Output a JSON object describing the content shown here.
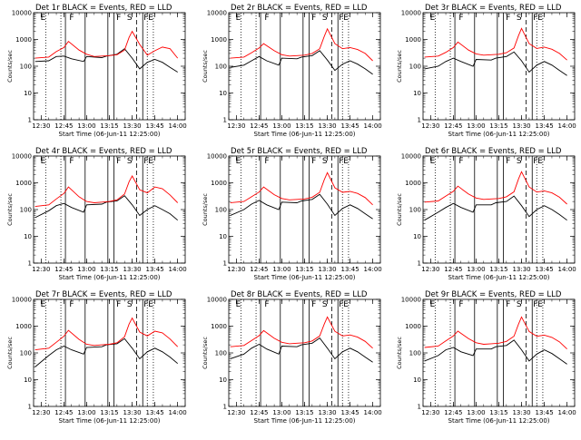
{
  "chart_data": {
    "type": "line",
    "shared": {
      "xlabel": "Start Time (06-Jun-11 12:25:00)",
      "ylabel": "Counts/sec",
      "x_ticks": [
        "12:30",
        "12:45",
        "13:00",
        "13:15",
        "13:30",
        "13:45",
        "14:00"
      ],
      "x_range": [
        "12:25",
        "14:05"
      ],
      "y_ticks": [
        "1",
        "10",
        "100",
        "1000",
        "10000"
      ],
      "y_log": true,
      "y_range": [
        1,
        10000
      ],
      "series_colors": {
        "events": "#000000",
        "lld": "#ff0000"
      },
      "markers": {
        "dotted": [
          "12:33",
          "12:43",
          "13:40",
          "13:44"
        ],
        "solid": [
          "12:46",
          "12:59",
          "13:14",
          "13:18",
          "13:37"
        ],
        "dashed": [
          "13:33"
        ]
      },
      "marker_labels": [
        {
          "time": "12:29",
          "text": "E"
        },
        {
          "time": "12:48",
          "text": "F"
        },
        {
          "time": "13:19",
          "text": "F"
        },
        {
          "time": "13:26",
          "text": "S"
        },
        {
          "time": "13:37",
          "text": "F"
        },
        {
          "time": "13:40",
          "text": "E"
        }
      ]
    },
    "panels": [
      {
        "title": "Det 1r BLACK = Events, RED = LLD",
        "series": [
          {
            "name": "BLACK = Events",
            "x": [
              "12:26",
              "12:35",
              "12:40",
              "12:45",
              "12:50",
              "12:58",
              "13:00",
              "13:10",
              "13:13",
              "13:20",
              "13:25",
              "13:30",
              "13:35",
              "13:40",
              "13:45",
              "13:50",
              "13:55",
              "14:00"
            ],
            "values": [
              150,
              160,
              230,
              240,
              190,
              150,
              230,
              210,
              240,
              280,
              450,
              200,
              80,
              140,
              180,
              140,
              90,
              60
            ]
          },
          {
            "name": "RED = LLD",
            "x": [
              "12:26",
              "12:35",
              "12:40",
              "12:45",
              "12:48",
              "12:55",
              "13:00",
              "13:05",
              "13:10",
              "13:15",
              "13:20",
              "13:25",
              "13:28",
              "13:30",
              "13:35",
              "13:40",
              "13:45",
              "13:50",
              "13:55",
              "14:00"
            ],
            "values": [
              200,
              220,
              350,
              500,
              850,
              400,
              280,
              230,
              240,
              250,
              270,
              400,
              1200,
              2000,
              650,
              260,
              380,
              520,
              450,
              200
            ]
          }
        ]
      },
      {
        "title": "Det 2r BLACK = Events, RED = LLD",
        "series": [
          {
            "name": "BLACK = Events",
            "x": [
              "12:26",
              "12:35",
              "12:40",
              "12:45",
              "12:50",
              "12:58",
              "13:00",
              "13:10",
              "13:13",
              "13:20",
              "13:25",
              "13:30",
              "13:35",
              "13:40",
              "13:45",
              "13:50",
              "13:55",
              "14:00"
            ],
            "values": [
              90,
              110,
              160,
              230,
              160,
              110,
              200,
              190,
              220,
              250,
              380,
              170,
              70,
              120,
              160,
              120,
              80,
              50
            ]
          },
          {
            "name": "RED = LLD",
            "x": [
              "12:26",
              "12:35",
              "12:40",
              "12:45",
              "12:48",
              "12:55",
              "13:00",
              "13:05",
              "13:10",
              "13:15",
              "13:20",
              "13:25",
              "13:28",
              "13:30",
              "13:35",
              "13:40",
              "13:45",
              "13:50",
              "13:55",
              "14:00"
            ],
            "values": [
              200,
              220,
              320,
              480,
              700,
              380,
              270,
              240,
              250,
              260,
              300,
              450,
              1300,
              2500,
              700,
              450,
              500,
              420,
              300,
              160
            ]
          }
        ]
      },
      {
        "title": "Det 3r BLACK = Events, RED = LLD",
        "series": [
          {
            "name": "BLACK = Events",
            "x": [
              "12:26",
              "12:35",
              "12:40",
              "12:45",
              "12:50",
              "12:58",
              "13:00",
              "13:10",
              "13:13",
              "13:20",
              "13:25",
              "13:30",
              "13:35",
              "13:40",
              "13:45",
              "13:50",
              "13:55",
              "14:00"
            ],
            "values": [
              80,
              100,
              150,
              200,
              150,
              100,
              180,
              170,
              200,
              230,
              340,
              160,
              60,
              110,
              150,
              110,
              70,
              45
            ]
          },
          {
            "name": "RED = LLD",
            "x": [
              "12:26",
              "12:35",
              "12:40",
              "12:45",
              "12:48",
              "12:55",
              "13:00",
              "13:05",
              "13:10",
              "13:15",
              "13:20",
              "13:25",
              "13:28",
              "13:30",
              "13:35",
              "13:40",
              "13:45",
              "13:50",
              "13:55",
              "14:00"
            ],
            "values": [
              220,
              240,
              330,
              500,
              800,
              400,
              290,
              260,
              270,
              280,
              320,
              480,
              1400,
              2600,
              700,
              460,
              520,
              430,
              300,
              170
            ]
          }
        ]
      },
      {
        "title": "Det 4r BLACK = Events, RED = LLD",
        "series": [
          {
            "name": "BLACK = Events",
            "x": [
              "12:26",
              "12:35",
              "12:40",
              "12:45",
              "12:50",
              "12:58",
              "13:00",
              "13:10",
              "13:13",
              "13:20",
              "13:25",
              "13:30",
              "13:35",
              "13:40",
              "13:45",
              "13:50",
              "13:55",
              "14:00"
            ],
            "values": [
              50,
              90,
              140,
              170,
              120,
              80,
              150,
              160,
              190,
              210,
              330,
              150,
              60,
              100,
              140,
              100,
              70,
              40
            ]
          },
          {
            "name": "RED = LLD",
            "x": [
              "12:26",
              "12:35",
              "12:40",
              "12:45",
              "12:48",
              "12:55",
              "13:00",
              "13:05",
              "13:10",
              "13:15",
              "13:20",
              "13:25",
              "13:28",
              "13:30",
              "13:35",
              "13:40",
              "13:45",
              "13:50",
              "13:55",
              "14:00"
            ],
            "values": [
              130,
              150,
              250,
              400,
              700,
              300,
              200,
              180,
              190,
              200,
              230,
              380,
              1100,
              1800,
              550,
              420,
              700,
              600,
              350,
              180
            ]
          }
        ]
      },
      {
        "title": "Det 5r BLACK = Events, RED = LLD",
        "series": [
          {
            "name": "BLACK = Events",
            "x": [
              "12:26",
              "12:35",
              "12:40",
              "12:45",
              "12:50",
              "12:58",
              "13:00",
              "13:10",
              "13:13",
              "13:20",
              "13:25",
              "13:30",
              "13:35",
              "13:40",
              "13:45",
              "13:50",
              "13:55",
              "14:00"
            ],
            "values": [
              60,
              100,
              160,
              220,
              150,
              100,
              190,
              180,
              210,
              240,
              370,
              160,
              60,
              110,
              150,
              110,
              70,
              45
            ]
          },
          {
            "name": "RED = LLD",
            "x": [
              "12:26",
              "12:35",
              "12:40",
              "12:45",
              "12:48",
              "12:55",
              "13:00",
              "13:05",
              "13:10",
              "13:15",
              "13:20",
              "13:25",
              "13:28",
              "13:30",
              "13:35",
              "13:40",
              "13:45",
              "13:50",
              "13:55",
              "14:00"
            ],
            "values": [
              180,
              200,
              300,
              450,
              700,
              360,
              260,
              230,
              240,
              250,
              290,
              440,
              1300,
              2400,
              650,
              440,
              480,
              400,
              280,
              150
            ]
          }
        ]
      },
      {
        "title": "Det 6r BLACK = Events, RED = LLD",
        "series": [
          {
            "name": "BLACK = Events",
            "x": [
              "12:26",
              "12:35",
              "12:40",
              "12:45",
              "12:50",
              "12:58",
              "13:00",
              "13:10",
              "13:13",
              "13:20",
              "13:25",
              "13:30",
              "13:35",
              "13:40",
              "13:45",
              "13:50",
              "13:55",
              "14:00"
            ],
            "values": [
              40,
              80,
              120,
              170,
              120,
              80,
              150,
              150,
              180,
              200,
              320,
              140,
              55,
              100,
              140,
              100,
              65,
              40
            ]
          },
          {
            "name": "RED = LLD",
            "x": [
              "12:26",
              "12:35",
              "12:40",
              "12:45",
              "12:48",
              "12:55",
              "13:00",
              "13:05",
              "13:10",
              "13:15",
              "13:20",
              "13:25",
              "13:28",
              "13:30",
              "13:35",
              "13:40",
              "13:45",
              "13:50",
              "13:55",
              "14:00"
            ],
            "values": [
              190,
              210,
              320,
              480,
              750,
              380,
              270,
              240,
              250,
              260,
              300,
              460,
              1400,
              2600,
              700,
              450,
              500,
              420,
              290,
              160
            ]
          }
        ]
      },
      {
        "title": "Det 7r BLACK = Events, RED = LLD",
        "series": [
          {
            "name": "BLACK = Events",
            "x": [
              "12:26",
              "12:35",
              "12:40",
              "12:45",
              "12:50",
              "12:58",
              "13:00",
              "13:10",
              "13:13",
              "13:20",
              "13:25",
              "13:30",
              "13:35",
              "13:40",
              "13:45",
              "13:50",
              "13:55",
              "14:00"
            ],
            "values": [
              30,
              80,
              130,
              180,
              130,
              90,
              160,
              170,
              200,
              220,
              340,
              150,
              60,
              110,
              150,
              110,
              70,
              40
            ]
          },
          {
            "name": "RED = LLD",
            "x": [
              "12:26",
              "12:35",
              "12:40",
              "12:45",
              "12:48",
              "12:55",
              "13:00",
              "13:05",
              "13:10",
              "13:15",
              "13:20",
              "13:25",
              "13:28",
              "13:30",
              "13:35",
              "13:40",
              "13:45",
              "13:50",
              "13:55",
              "14:00"
            ],
            "values": [
              130,
              150,
              250,
              420,
              700,
              320,
              210,
              190,
              200,
              210,
              240,
              400,
              1200,
              2000,
              600,
              430,
              650,
              560,
              330,
              170
            ]
          }
        ]
      },
      {
        "title": "Det 8r BLACK = Events, RED = LLD",
        "series": [
          {
            "name": "BLACK = Events",
            "x": [
              "12:26",
              "12:35",
              "12:40",
              "12:45",
              "12:50",
              "12:58",
              "13:00",
              "13:10",
              "13:13",
              "13:20",
              "13:25",
              "13:30",
              "13:35",
              "13:40",
              "13:45",
              "13:50",
              "13:55",
              "14:00"
            ],
            "values": [
              60,
              90,
              150,
              210,
              140,
              90,
              180,
              170,
              200,
              230,
              360,
              150,
              60,
              110,
              150,
              110,
              70,
              45
            ]
          },
          {
            "name": "RED = LLD",
            "x": [
              "12:26",
              "12:35",
              "12:40",
              "12:45",
              "12:48",
              "12:55",
              "13:00",
              "13:05",
              "13:10",
              "13:15",
              "13:20",
              "13:25",
              "13:28",
              "13:30",
              "13:35",
              "13:40",
              "13:45",
              "13:50",
              "13:55",
              "14:00"
            ],
            "values": [
              170,
              190,
              290,
              440,
              680,
              350,
              250,
              220,
              230,
              240,
              280,
              430,
              1200,
              2200,
              640,
              430,
              470,
              390,
              270,
              150
            ]
          }
        ]
      },
      {
        "title": "Det 9r BLACK = Events, RED = LLD",
        "series": [
          {
            "name": "BLACK = Events",
            "x": [
              "12:26",
              "12:35",
              "12:40",
              "12:45",
              "12:50",
              "12:58",
              "13:00",
              "13:10",
              "13:13",
              "13:20",
              "13:25",
              "13:30",
              "13:35",
              "13:40",
              "13:45",
              "13:50",
              "13:55",
              "14:00"
            ],
            "values": [
              50,
              80,
              130,
              160,
              110,
              80,
              140,
              140,
              170,
              190,
              300,
              130,
              50,
              90,
              130,
              95,
              60,
              38
            ]
          },
          {
            "name": "RED = LLD",
            "x": [
              "12:26",
              "12:35",
              "12:40",
              "12:45",
              "12:48",
              "12:55",
              "13:00",
              "13:05",
              "13:10",
              "13:15",
              "13:20",
              "13:25",
              "13:28",
              "13:30",
              "13:35",
              "13:40",
              "13:45",
              "13:50",
              "13:55",
              "14:00"
            ],
            "values": [
              160,
              180,
              280,
              430,
              650,
              340,
              240,
              210,
              220,
              230,
              270,
              420,
              1200,
              2200,
              630,
              420,
              460,
              380,
              260,
              140
            ]
          }
        ]
      }
    ]
  }
}
